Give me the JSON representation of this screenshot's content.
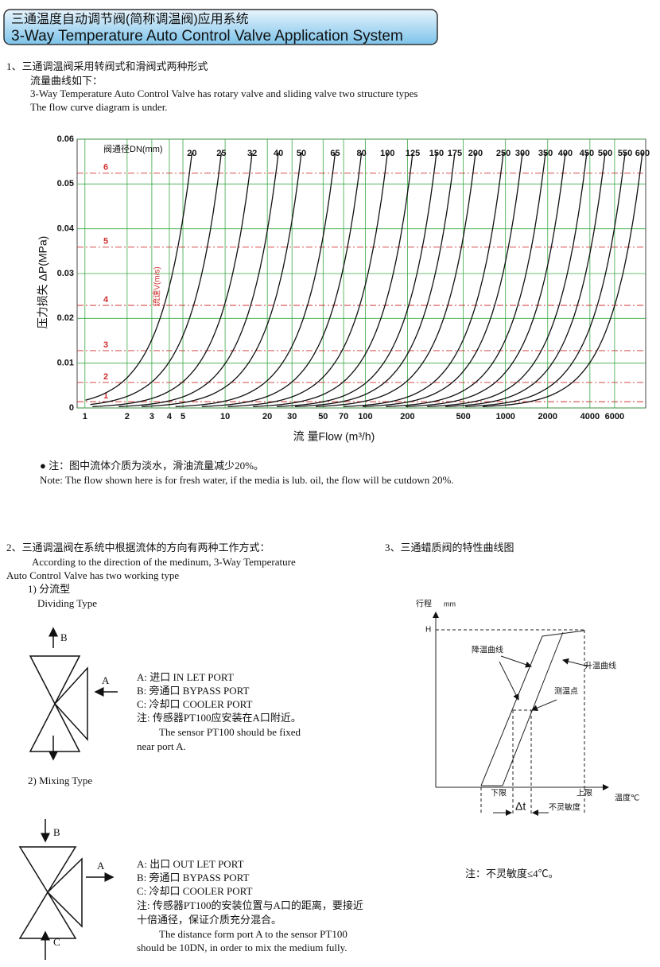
{
  "header": {
    "title_cn": "三通温度自动调节阀(简称调温阀)应用系统",
    "title_en": "3-Way Temperature Auto Control Valve Application System"
  },
  "section1": {
    "lines": [
      "1、三通调温阀采用转阀式和滑阀式两种形式",
      "流量曲线如下：",
      "3-Way Temperature Auto Control Valve has rotary valve and sliding valve two structure types",
      "The flow curve diagram is under."
    ]
  },
  "flow_chart": {
    "type": "line",
    "y_label": "压力损失 ΔP(MPa)",
    "x_label": "流 量Flow (m³/h)",
    "dn_label": "阀通径DN(mm)",
    "velocity_label": "流速V(m/s)",
    "log_x": true,
    "grid": true,
    "xlim": [
      0.88,
      10000
    ],
    "ylim": [
      0,
      0.06
    ],
    "xticks": [
      1,
      2,
      3,
      4,
      5,
      10,
      20,
      30,
      50,
      70,
      100,
      200,
      500,
      1000,
      2000,
      4000,
      6000
    ],
    "yticks": [
      0,
      0.01,
      0.02,
      0.03,
      0.04,
      0.05,
      0.06
    ],
    "p_top": 0.057,
    "curves": [
      {
        "name": "20",
        "q_top": 5.8
      },
      {
        "name": "25",
        "q_top": 9.4
      },
      {
        "name": "32",
        "q_top": 15.6
      },
      {
        "name": "40",
        "q_top": 24
      },
      {
        "name": "50",
        "q_top": 35
      },
      {
        "name": "65",
        "q_top": 61
      },
      {
        "name": "80",
        "q_top": 94
      },
      {
        "name": "100",
        "q_top": 144
      },
      {
        "name": "125",
        "q_top": 218
      },
      {
        "name": "150",
        "q_top": 322
      },
      {
        "name": "175",
        "q_top": 435
      },
      {
        "name": "200",
        "q_top": 611
      },
      {
        "name": "250",
        "q_top": 966
      },
      {
        "name": "300",
        "q_top": 1321
      },
      {
        "name": "350",
        "q_top": 1930
      },
      {
        "name": "400",
        "q_top": 2673
      },
      {
        "name": "450",
        "q_top": 3802
      },
      {
        "name": "500",
        "q_top": 5140
      },
      {
        "name": "550",
        "q_top": 7128
      },
      {
        "name": "600",
        "q_top": 9480
      }
    ],
    "velocity_lines": [
      {
        "name": "1",
        "pressure": 0.0014
      },
      {
        "name": "2",
        "pressure": 0.0057
      },
      {
        "name": "3",
        "pressure": 0.0128
      },
      {
        "name": "4",
        "pressure": 0.0229
      },
      {
        "name": "5",
        "pressure": 0.0359
      },
      {
        "name": "6",
        "pressure": 0.0524
      }
    ]
  },
  "note": {
    "cn": "● 注：图中流体介质为淡水，滑油流量减少20%。",
    "en": "Note: The flow shown here is for fresh water, if the media is lub. oil, the flow will be cutdown 20%."
  },
  "section2": {
    "title": "2、三通调温阀在系统中根据流体的方向有两种工作方式：",
    "intro": [
      "According to the direction of the medinum, 3-Way Temperature",
      "Auto Control Valve has two working type"
    ],
    "dividing": {
      "title_cn": "1) 分流型",
      "title_en": "Dividing Type",
      "ports": [
        "B",
        "A"
      ],
      "lines": [
        "A: 进口 IN LET PORT",
        "B: 旁通口 BYPASS PORT",
        "C: 冷却口 COOLER PORT",
        "注: 传感器PT100应安装在A口附近。",
        "The sensor PT100 should be fixed",
        "near port A."
      ]
    },
    "mixing": {
      "title": "2)    Mixing Type",
      "ports": [
        "B",
        "A",
        "C"
      ],
      "lines": [
        "A: 出口 OUT LET PORT",
        "B: 旁通口 BYPASS PORT",
        "C: 冷却口 COOLER PORT",
        "注: 传感器PT100的安装位置与A口的距离，要接近",
        "十倍通径，保证介质充分混合。",
        "The distance form port A to the sensor PT100",
        "should be 10DN, in order to mix the medium fully."
      ]
    }
  },
  "section3": {
    "title": "3、三通蜡质阀的特性曲线图",
    "y_label": "行程",
    "y_unit": "mm",
    "h": "H",
    "cooling": "降温曲线",
    "heating": "升温曲线",
    "point": "测温点",
    "lower": "下限",
    "upper": "上限",
    "x_label": "温度℃",
    "dt": "Δt",
    "insensitivity": "不灵敏度",
    "note": "注：不灵敏度≤4℃。"
  }
}
